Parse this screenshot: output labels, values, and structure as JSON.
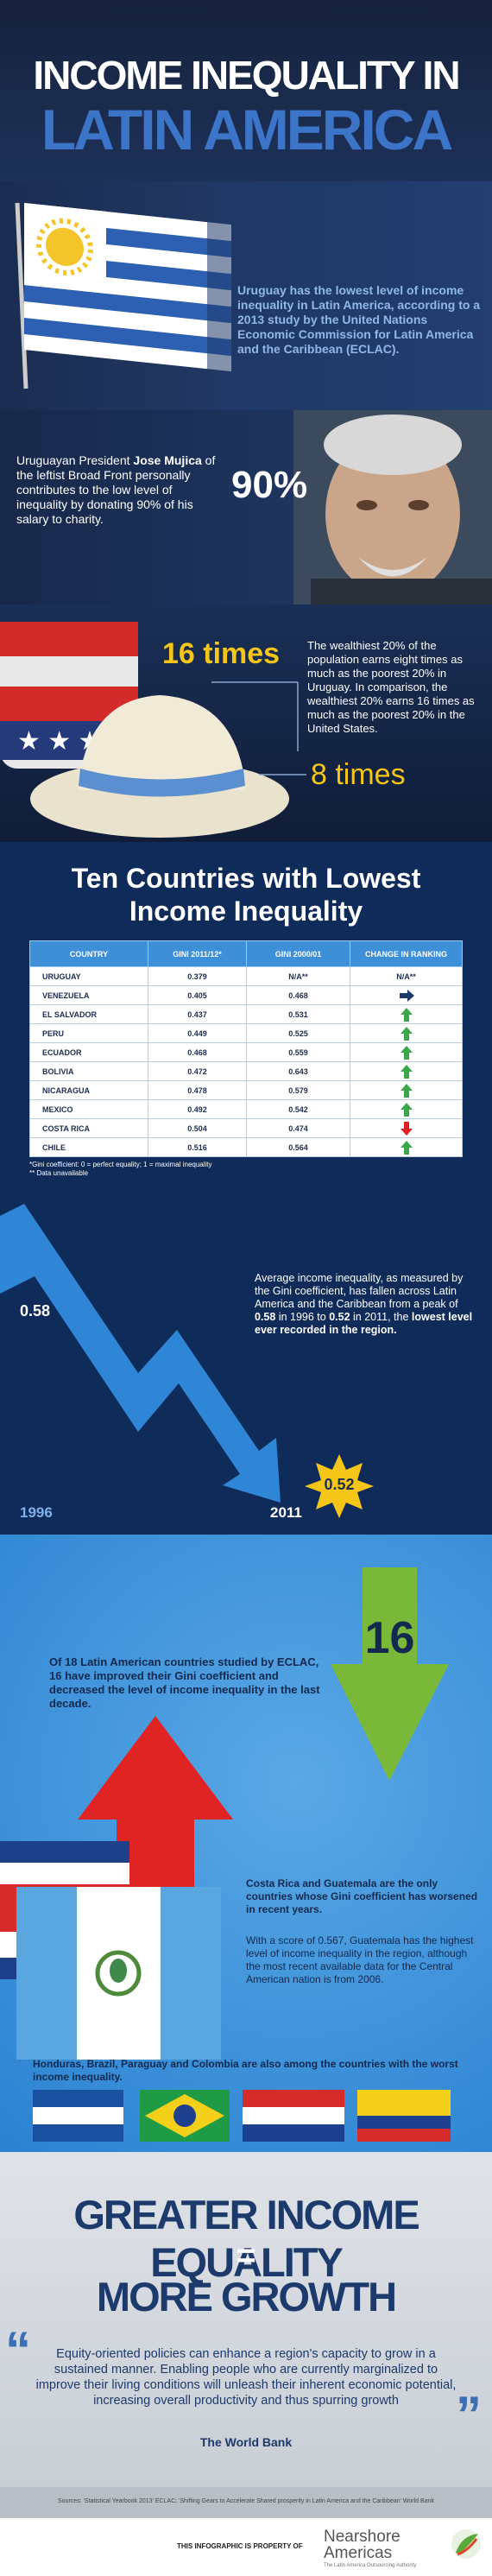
{
  "header": {
    "title_line1": "INCOME INEQUALITY IN",
    "title_line2": "LATIN AMERICA"
  },
  "uruguay": {
    "text": "Uruguay has the lowest level of income inequality in Latin America, according to a 2013 study by the United Nations Economic Commission for Latin America and the Caribbean (ECLAC)."
  },
  "mujica": {
    "text_parts": [
      "Uruguayan President ",
      "Jose Mujica",
      " of the leftist Broad Front personally contributes to the low level of inequality by donating 90% of his salary to charity."
    ],
    "stat": "90%"
  },
  "ratios": {
    "stat_top": "16 times",
    "text": "The wealthiest 20% of the population earns eight times as much as the poorest 20% in Uruguay. In comparison, the wealthiest 20% earns 16 times as much as the poorest 20% in the United States.",
    "stat_bottom": "8 times"
  },
  "table": {
    "title_line1": "Ten Countries with Lowest",
    "title_line2": "Income Inequality",
    "headers": [
      "COUNTRY",
      "GINI 2011/12*",
      "GINI 2000/01",
      "CHANGE IN RANKING"
    ],
    "rows": [
      [
        "URUGUAY",
        "0.379",
        "N/A**",
        "N/A**"
      ],
      [
        "VENEZUELA",
        "0.405",
        "0.468"
      ],
      [
        "EL SALVADOR",
        "0.437",
        "0.531"
      ],
      [
        "PERU",
        "0.449",
        "0.525"
      ],
      [
        "ECUADOR",
        "0.468",
        "0.559"
      ],
      [
        "BOLIVIA",
        "0.472",
        "0.643"
      ],
      [
        "NICARAGUA",
        "0.478",
        "0.579"
      ],
      [
        "MEXICO",
        "0.492",
        "0.542"
      ],
      [
        "COSTA RICA",
        "0.504",
        "0.474"
      ],
      [
        "CHILE",
        "0.516",
        "0.564"
      ]
    ],
    "footnotes": [
      "*Gini coefficient: 0 = perfect equality; 1 = maximal inequality",
      "** Data unavailable"
    ]
  },
  "trend": {
    "start_value": "0.58",
    "start_year": "1996",
    "end_year": "2011",
    "end_value": "0.52",
    "text_parts": [
      "Average income inequality, as measured by the Gini coefficient, has fallen across Latin America and the Caribbean from a peak of ",
      "0.58",
      " in 1996 to ",
      "0.52",
      " in 2011, the ",
      "lowest level ever recorded in the region."
    ]
  },
  "improvement": {
    "text": "Of 18 Latin American countries studied by ECLAC, 16 have improved their Gini coefficient and decreased the level of income inequality in the last decade.",
    "stat": "16"
  },
  "worsened": {
    "text1": "Costa Rica and Guatemala are the only countries whose Gini coefficient has worsened in recent years.",
    "text2": "With a score of 0.567, Guatemala has the highest level of income inequality in the region, although the most recent available data for the Central American nation is from 2006.",
    "text3": "Honduras, Brazil, Paraguay and Colombia are also among the countries with the worst income inequality."
  },
  "conclusion": {
    "line1": "GREATER INCOME EQUALITY",
    "equals": "=",
    "line2": "MORE GROWTH",
    "quote": "Equity-oriented policies can enhance a region's capacity to grow in a sustained manner. Enabling people who are currently marginalized to improve their living conditions will unleash their inherent economic potential, increasing overall productivity and thus spurring growth",
    "source": "The World Bank"
  },
  "footer": {
    "sources": "Sources: 'Statistical Yearbook 2013' ECLAC; 'Shifting Gears to Accelerate Shared prosperity in Latin America and the Caribbean' World Bank",
    "property": "THIS INFOGRAPHIC IS PROPERTY OF",
    "brand1": "Nearshore",
    "brand2": "Americas",
    "tagline": "The Latin America Outsourcing Authority"
  }
}
